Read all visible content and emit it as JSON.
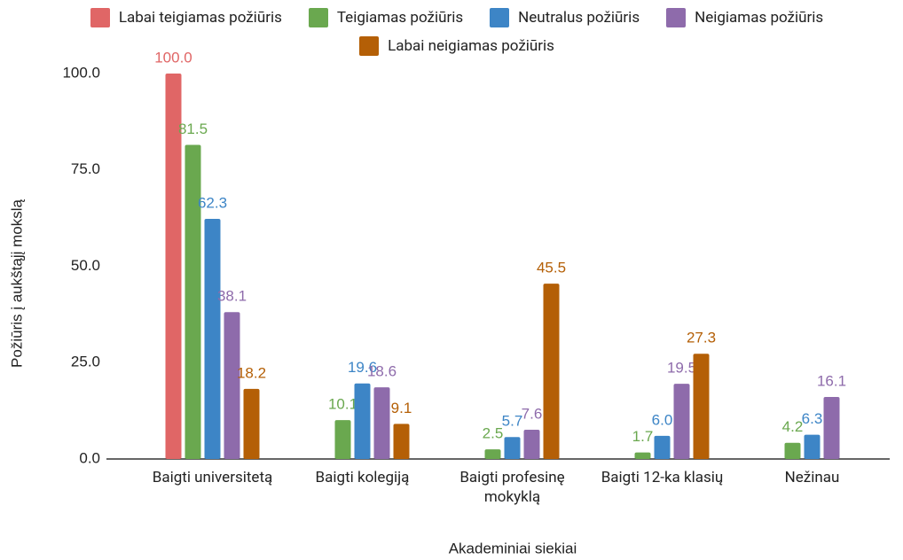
{
  "chart_data": {
    "type": "bar",
    "categories": [
      "Baigti universitetą",
      "Baigti kolegiją",
      "Baigti profesinę mokyklą",
      "Baigti 12-ka klasių",
      "Nežinau"
    ],
    "series": [
      {
        "name": "Labai teigiamas požiūris",
        "color": "#e06666",
        "values": [
          100.0,
          null,
          null,
          null,
          null
        ],
        "value_labels": [
          "100.0",
          null,
          null,
          null,
          null
        ]
      },
      {
        "name": "Teigiamas požiūris",
        "color": "#6aa84f",
        "values": [
          81.5,
          10.1,
          2.5,
          1.7,
          4.2
        ],
        "value_labels": [
          "81.5",
          "10.1",
          "2.5",
          "1.7",
          "4.2"
        ]
      },
      {
        "name": "Neutralus požiūris",
        "color": "#3d85c6",
        "values": [
          62.3,
          19.6,
          5.7,
          6.0,
          6.3
        ],
        "value_labels": [
          "62.3",
          "19.6",
          "5.7",
          "6.0",
          "6.3"
        ]
      },
      {
        "name": "Neigiamas požiūris",
        "color": "#8e6bab",
        "values": [
          38.1,
          18.6,
          7.6,
          19.5,
          16.1
        ],
        "value_labels": [
          "38.1",
          "18.6",
          "7.6",
          "19.5",
          "16.1"
        ]
      },
      {
        "name": "Labai neigiamas požiūris",
        "color": "#b45f06",
        "values": [
          18.2,
          9.1,
          45.5,
          27.3,
          null
        ],
        "value_labels": [
          "18.2",
          "9.1",
          "45.5",
          "27.3",
          null
        ]
      }
    ],
    "ylim": [
      0,
      100
    ],
    "yticks": [
      {
        "value": 0,
        "label": "0.0"
      },
      {
        "value": 25,
        "label": "25.0"
      },
      {
        "value": 50,
        "label": "50.0"
      },
      {
        "value": 75,
        "label": "75.0"
      },
      {
        "value": 100,
        "label": "100.0"
      }
    ],
    "xlabel": "Akademiniai siekiai",
    "ylabel": "Požiūris į aukštąjį mokslą",
    "grid": false,
    "legend": "top"
  }
}
